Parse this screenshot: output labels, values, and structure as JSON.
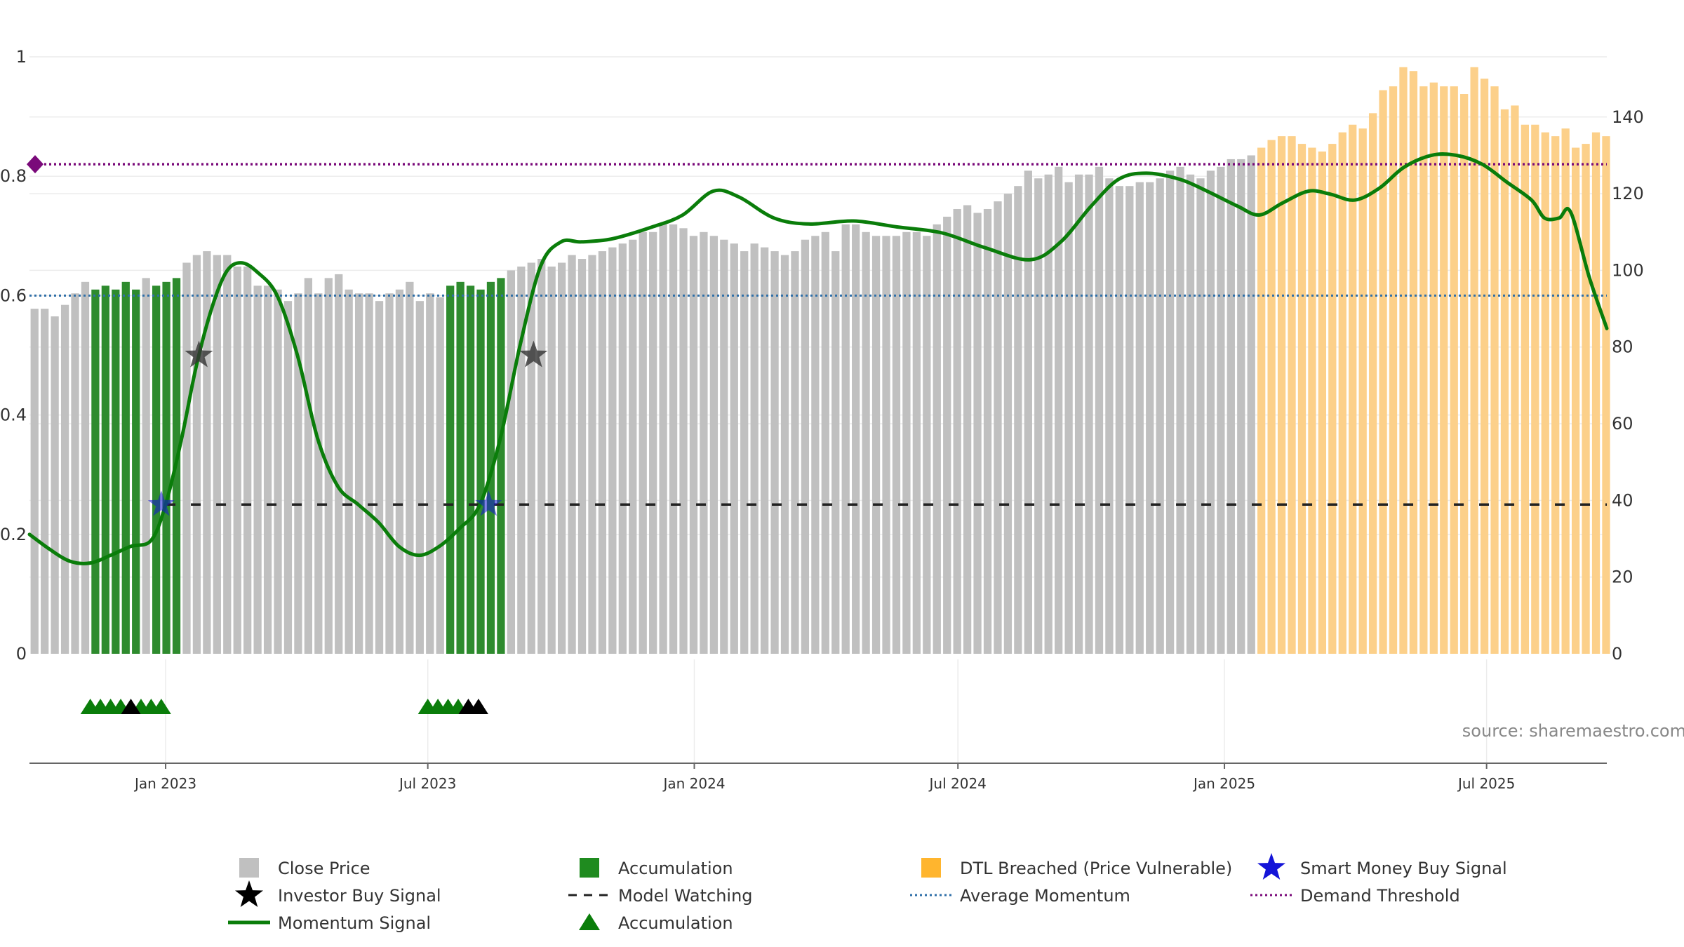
{
  "chart_data": {
    "type": "bar",
    "source_note": "source: sharemaestro.com",
    "left_axis": {
      "ticks": [
        0,
        0.2,
        0.4,
        0.6,
        0.8,
        1
      ],
      "labels": [
        "0",
        "0.2",
        "0.4",
        "0.6",
        "0.8",
        "1"
      ],
      "range": [
        0,
        1
      ]
    },
    "right_axis": {
      "ticks": [
        0,
        20,
        40,
        60,
        80,
        100,
        120,
        140
      ],
      "labels": [
        "0",
        "20",
        "40",
        "60",
        "80",
        "100",
        "120",
        "140"
      ],
      "range": [
        0,
        155.7
      ]
    },
    "x_axis": {
      "start": "2022-09-29",
      "end": "2025-09-22",
      "ticks": [
        {
          "date": "2023-01-01",
          "label": "Jan 2023"
        },
        {
          "date": "2023-07-01",
          "label": "Jul 2023"
        },
        {
          "date": "2024-01-01",
          "label": "Jan 2024"
        },
        {
          "date": "2024-07-01",
          "label": "Jul 2024"
        },
        {
          "date": "2025-01-01",
          "label": "Jan 2025"
        },
        {
          "date": "2025-07-01",
          "label": "Jul 2025"
        }
      ]
    },
    "grid": true,
    "colors": {
      "close_price": "#c0c0c0",
      "accumulation": "#2e8b2e",
      "dtl_breached": "#fcd08a",
      "momentum": "#0a7d0a",
      "model_watching": "#222222",
      "average_momentum": "#2f6fa8",
      "demand_threshold": "#7a0a7a",
      "smart_money": "#1616d6",
      "investor": "#000000"
    },
    "price_bars": {
      "start": "2022-09-29",
      "week_step_days": 7,
      "values": [
        90,
        90,
        88,
        91,
        94,
        97,
        95,
        96,
        95,
        97,
        95,
        98,
        96,
        97,
        98,
        102,
        104,
        105,
        104,
        104,
        101,
        101,
        96,
        96,
        95,
        92,
        94,
        98,
        94,
        98,
        99,
        95,
        94,
        94,
        92,
        94,
        95,
        97,
        92,
        94,
        93,
        96,
        97,
        96,
        95,
        97,
        98,
        100,
        101,
        102,
        103,
        101,
        102,
        104,
        103,
        104,
        105,
        106,
        107,
        108,
        110,
        110,
        112,
        112,
        111,
        109,
        110,
        109,
        108,
        107,
        105,
        107,
        106,
        105,
        104,
        105,
        108,
        109,
        110,
        105,
        112,
        112,
        110,
        109,
        109,
        109,
        110,
        110,
        109,
        112,
        114,
        116,
        117,
        115,
        116,
        118,
        120,
        122,
        126,
        124,
        125,
        127,
        123,
        125,
        125,
        127,
        124,
        122,
        122,
        123,
        123,
        124,
        126,
        127,
        125,
        124,
        126,
        127,
        129,
        129,
        130,
        132,
        134,
        135,
        135,
        133,
        132,
        131,
        133,
        136,
        138,
        137,
        141,
        147,
        148,
        153,
        152,
        148,
        149,
        148,
        148,
        146,
        153,
        150,
        148,
        142,
        143,
        138,
        138,
        136,
        135,
        137,
        132,
        133,
        136,
        135
      ],
      "accumulation_index_ranges": [
        [
          6,
          10
        ],
        [
          12,
          14
        ],
        [
          41,
          46
        ]
      ],
      "dtl_breached_from_index": 121
    },
    "momentum_signal": {
      "points": [
        [
          "2022-09-29",
          0.2
        ],
        [
          "2022-10-13",
          0.175
        ],
        [
          "2022-10-27",
          0.155
        ],
        [
          "2022-11-10",
          0.152
        ],
        [
          "2022-11-24",
          0.165
        ],
        [
          "2022-12-08",
          0.18
        ],
        [
          "2022-12-22",
          0.19
        ],
        [
          "2023-01-01",
          0.25
        ],
        [
          "2023-01-12",
          0.36
        ],
        [
          "2023-01-22",
          0.48
        ],
        [
          "2023-02-02",
          0.58
        ],
        [
          "2023-02-12",
          0.64
        ],
        [
          "2023-02-22",
          0.655
        ],
        [
          "2023-03-05",
          0.64
        ],
        [
          "2023-03-19",
          0.6
        ],
        [
          "2023-04-02",
          0.5
        ],
        [
          "2023-04-16",
          0.36
        ],
        [
          "2023-04-30",
          0.28
        ],
        [
          "2023-05-14",
          0.25
        ],
        [
          "2023-05-28",
          0.22
        ],
        [
          "2023-06-11",
          0.18
        ],
        [
          "2023-06-25",
          0.165
        ],
        [
          "2023-07-09",
          0.18
        ],
        [
          "2023-07-23",
          0.21
        ],
        [
          "2023-08-06",
          0.25
        ],
        [
          "2023-08-20",
          0.36
        ],
        [
          "2023-09-03",
          0.52
        ],
        [
          "2023-09-17",
          0.65
        ],
        [
          "2023-10-01",
          0.69
        ],
        [
          "2023-10-15",
          0.69
        ],
        [
          "2023-11-05",
          0.695
        ],
        [
          "2023-12-03",
          0.715
        ],
        [
          "2023-12-24",
          0.735
        ],
        [
          "2024-01-14",
          0.775
        ],
        [
          "2024-02-01",
          0.765
        ],
        [
          "2024-02-25",
          0.73
        ],
        [
          "2024-03-20",
          0.72
        ],
        [
          "2024-04-20",
          0.725
        ],
        [
          "2024-05-20",
          0.715
        ],
        [
          "2024-06-20",
          0.705
        ],
        [
          "2024-07-20",
          0.68
        ],
        [
          "2024-08-20",
          0.66
        ],
        [
          "2024-09-10",
          0.69
        ],
        [
          "2024-10-01",
          0.75
        ],
        [
          "2024-10-20",
          0.795
        ],
        [
          "2024-11-08",
          0.805
        ],
        [
          "2024-12-01",
          0.795
        ],
        [
          "2024-12-20",
          0.775
        ],
        [
          "2025-01-10",
          0.75
        ],
        [
          "2025-01-25",
          0.735
        ],
        [
          "2025-02-10",
          0.755
        ],
        [
          "2025-02-28",
          0.775
        ],
        [
          "2025-03-15",
          0.77
        ],
        [
          "2025-04-01",
          0.76
        ],
        [
          "2025-04-18",
          0.78
        ],
        [
          "2025-05-05",
          0.815
        ],
        [
          "2025-05-24",
          0.835
        ],
        [
          "2025-06-10",
          0.835
        ],
        [
          "2025-06-28",
          0.82
        ],
        [
          "2025-07-15",
          0.79
        ],
        [
          "2025-08-01",
          0.76
        ],
        [
          "2025-08-10",
          0.73
        ],
        [
          "2025-08-20",
          0.73
        ],
        [
          "2025-08-28",
          0.74
        ],
        [
          "2025-09-10",
          0.63
        ],
        [
          "2025-09-22",
          0.545
        ]
      ]
    },
    "model_watching_level": 0.25,
    "model_watching_from": "2023-01-01",
    "average_momentum_level": 0.6,
    "demand_threshold_level": 0.82,
    "smart_money_signals": [
      [
        "2022-12-29",
        0.25
      ],
      [
        "2023-08-12",
        0.25
      ]
    ],
    "investor_signals": [
      [
        "2023-01-24",
        0.5
      ],
      [
        "2023-09-12",
        0.5
      ]
    ],
    "accumulation_triangles": {
      "green_dates": [
        "2022-11-10",
        "2022-11-17",
        "2022-11-24",
        "2022-12-01",
        "2022-12-15",
        "2022-12-22",
        "2022-12-29",
        "2023-07-01",
        "2023-07-08",
        "2023-07-15",
        "2023-07-22"
      ],
      "black_dates": [
        "2022-12-08",
        "2023-07-29",
        "2023-08-05"
      ]
    },
    "legend": {
      "position": "bottom",
      "items": [
        {
          "id": "close",
          "label": "Close Price",
          "marker": "square",
          "color": "#c0c0c0"
        },
        {
          "id": "accum-bar",
          "label": "Accumulation",
          "marker": "square",
          "color": "#1f8b1f"
        },
        {
          "id": "dtl",
          "label": "DTL Breached (Price Vulnerable)",
          "marker": "square",
          "color": "#ffb52e"
        },
        {
          "id": "smart",
          "label": "Smart Money Buy Signal",
          "marker": "star",
          "color": "#1414d8"
        },
        {
          "id": "investor",
          "label": "Investor Buy Signal",
          "marker": "star",
          "color": "#000000"
        },
        {
          "id": "watching",
          "label": "Model Watching",
          "marker": "dash",
          "color": "#222222"
        },
        {
          "id": "avgmom",
          "label": "Average Momentum",
          "marker": "dot",
          "color": "#2f6fa8"
        },
        {
          "id": "demand",
          "label": "Demand Threshold",
          "marker": "dot",
          "color": "#7a0a7a"
        },
        {
          "id": "momentum",
          "label": "Momentum Signal",
          "marker": "line",
          "color": "#0a7d0a"
        },
        {
          "id": "accum-tri",
          "label": "Accumulation",
          "marker": "triangle",
          "color": "#0a7d0a"
        }
      ]
    }
  }
}
